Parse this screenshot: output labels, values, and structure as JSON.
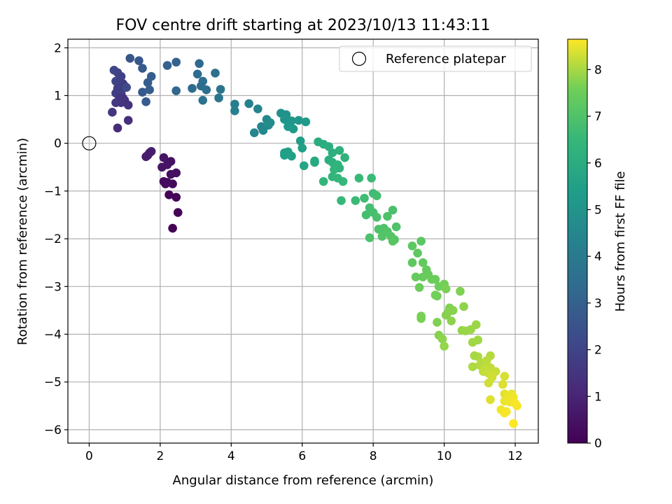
{
  "chart_data": {
    "type": "scatter",
    "title": "FOV centre drift starting at 2023/10/13 11:43:11",
    "xlabel": "Angular distance from reference (arcmin)",
    "ylabel": "Rotation from reference (arcmin)",
    "xlim": [
      -0.6,
      12.65
    ],
    "ylim": [
      -6.28,
      2.18
    ],
    "xticks": [
      0,
      2,
      4,
      6,
      8,
      10,
      12
    ],
    "xtick_labels": [
      "0",
      "2",
      "4",
      "6",
      "8",
      "10",
      "12"
    ],
    "yticks": [
      -6,
      -5,
      -4,
      -3,
      -2,
      -1,
      0,
      1,
      2
    ],
    "ytick_labels": [
      "−6",
      "−5",
      "−4",
      "−3",
      "−2",
      "−1",
      "0",
      "1",
      "2"
    ],
    "grid": true,
    "legend": {
      "placement": "upper right",
      "entries": [
        "Reference platepar"
      ]
    },
    "reference_point": {
      "x": 0,
      "y": 0,
      "label": "Reference platepar"
    },
    "colorbar": {
      "label": "Hours from first FF file",
      "range": [
        0,
        8.65
      ],
      "ticks": [
        0,
        1,
        2,
        3,
        4,
        5,
        6,
        7,
        8
      ],
      "tick_labels": [
        "0",
        "1",
        "2",
        "3",
        "4",
        "5",
        "6",
        "7",
        "8"
      ],
      "colormap": "viridis"
    },
    "points": [
      {
        "x": 1.6,
        "y": -0.28,
        "h": 0.7
      },
      {
        "x": 1.7,
        "y": -0.2,
        "h": 0.75
      },
      {
        "x": 1.75,
        "y": -0.17,
        "h": 0.8
      },
      {
        "x": 1.65,
        "y": -0.25,
        "h": 0.72
      },
      {
        "x": 2.1,
        "y": -0.3,
        "h": 0.5
      },
      {
        "x": 2.3,
        "y": -0.38,
        "h": 0.45
      },
      {
        "x": 2.05,
        "y": -0.5,
        "h": 0.55
      },
      {
        "x": 2.2,
        "y": -0.45,
        "h": 0.5
      },
      {
        "x": 2.45,
        "y": -0.62,
        "h": 0.4
      },
      {
        "x": 2.3,
        "y": -0.65,
        "h": 0.35
      },
      {
        "x": 2.1,
        "y": -0.8,
        "h": 0.3
      },
      {
        "x": 2.35,
        "y": -0.85,
        "h": 0.25
      },
      {
        "x": 2.2,
        "y": -0.82,
        "h": 0.28
      },
      {
        "x": 2.15,
        "y": -0.85,
        "h": 0.27
      },
      {
        "x": 2.25,
        "y": -1.08,
        "h": 0.15
      },
      {
        "x": 2.45,
        "y": -1.13,
        "h": 0.12
      },
      {
        "x": 2.5,
        "y": -1.45,
        "h": 0.08
      },
      {
        "x": 2.35,
        "y": -1.78,
        "h": 0.02
      },
      {
        "x": 0.7,
        "y": 1.53,
        "h": 2.1
      },
      {
        "x": 0.8,
        "y": 1.48,
        "h": 2.0
      },
      {
        "x": 0.9,
        "y": 1.4,
        "h": 1.9
      },
      {
        "x": 0.75,
        "y": 1.3,
        "h": 1.95
      },
      {
        "x": 0.95,
        "y": 1.25,
        "h": 1.85
      },
      {
        "x": 0.85,
        "y": 1.35,
        "h": 1.9
      },
      {
        "x": 0.8,
        "y": 1.15,
        "h": 1.8
      },
      {
        "x": 0.9,
        "y": 1.05,
        "h": 1.75
      },
      {
        "x": 0.75,
        "y": 1.05,
        "h": 1.8
      },
      {
        "x": 1.0,
        "y": 1.2,
        "h": 1.7
      },
      {
        "x": 1.05,
        "y": 1.17,
        "h": 2.2
      },
      {
        "x": 0.85,
        "y": 0.95,
        "h": 1.6
      },
      {
        "x": 0.95,
        "y": 0.95,
        "h": 1.5
      },
      {
        "x": 0.75,
        "y": 0.85,
        "h": 1.6
      },
      {
        "x": 0.9,
        "y": 0.85,
        "h": 1.55
      },
      {
        "x": 1.0,
        "y": 0.9,
        "h": 1.5
      },
      {
        "x": 1.1,
        "y": 0.8,
        "h": 1.4
      },
      {
        "x": 0.65,
        "y": 0.65,
        "h": 1.5
      },
      {
        "x": 1.1,
        "y": 0.48,
        "h": 1.3
      },
      {
        "x": 0.8,
        "y": 0.32,
        "h": 1.2
      },
      {
        "x": 1.15,
        "y": 1.78,
        "h": 2.6
      },
      {
        "x": 1.4,
        "y": 1.73,
        "h": 2.7
      },
      {
        "x": 1.5,
        "y": 1.57,
        "h": 2.8
      },
      {
        "x": 1.75,
        "y": 1.4,
        "h": 2.9
      },
      {
        "x": 1.65,
        "y": 1.27,
        "h": 2.85
      },
      {
        "x": 1.5,
        "y": 1.07,
        "h": 2.75
      },
      {
        "x": 1.7,
        "y": 1.12,
        "h": 2.9
      },
      {
        "x": 1.6,
        "y": 0.87,
        "h": 2.8
      },
      {
        "x": 2.2,
        "y": 1.63,
        "h": 3.0
      },
      {
        "x": 2.45,
        "y": 1.7,
        "h": 3.1
      },
      {
        "x": 2.45,
        "y": 1.1,
        "h": 3.2
      },
      {
        "x": 3.1,
        "y": 1.67,
        "h": 3.3
      },
      {
        "x": 3.05,
        "y": 1.45,
        "h": 3.4
      },
      {
        "x": 3.2,
        "y": 1.3,
        "h": 3.5
      },
      {
        "x": 3.15,
        "y": 1.2,
        "h": 3.45
      },
      {
        "x": 2.9,
        "y": 1.15,
        "h": 3.35
      },
      {
        "x": 3.3,
        "y": 1.12,
        "h": 3.5
      },
      {
        "x": 3.2,
        "y": 0.9,
        "h": 3.6
      },
      {
        "x": 3.55,
        "y": 1.47,
        "h": 3.6
      },
      {
        "x": 3.7,
        "y": 1.13,
        "h": 3.75
      },
      {
        "x": 3.65,
        "y": 0.95,
        "h": 3.8
      },
      {
        "x": 4.1,
        "y": 0.82,
        "h": 4.1
      },
      {
        "x": 4.1,
        "y": 0.68,
        "h": 4.2
      },
      {
        "x": 4.5,
        "y": 0.83,
        "h": 4.3
      },
      {
        "x": 4.75,
        "y": 0.72,
        "h": 4.4
      },
      {
        "x": 5.0,
        "y": 0.5,
        "h": 4.6
      },
      {
        "x": 4.85,
        "y": 0.35,
        "h": 4.5
      },
      {
        "x": 4.9,
        "y": 0.27,
        "h": 4.55
      },
      {
        "x": 5.05,
        "y": 0.38,
        "h": 4.65
      },
      {
        "x": 4.65,
        "y": 0.22,
        "h": 4.5
      },
      {
        "x": 5.1,
        "y": 0.43,
        "h": 4.7
      },
      {
        "x": 5.4,
        "y": 0.63,
        "h": 4.9
      },
      {
        "x": 5.55,
        "y": 0.6,
        "h": 5.0
      },
      {
        "x": 5.5,
        "y": 0.5,
        "h": 5.05
      },
      {
        "x": 5.7,
        "y": 0.47,
        "h": 5.1
      },
      {
        "x": 5.9,
        "y": 0.48,
        "h": 5.15
      },
      {
        "x": 5.6,
        "y": 0.35,
        "h": 5.2
      },
      {
        "x": 5.75,
        "y": 0.3,
        "h": 5.25
      },
      {
        "x": 6.1,
        "y": 0.45,
        "h": 5.3
      },
      {
        "x": 5.95,
        "y": 0.05,
        "h": 5.4
      },
      {
        "x": 6.0,
        "y": -0.1,
        "h": 5.5
      },
      {
        "x": 5.5,
        "y": -0.2,
        "h": 5.45
      },
      {
        "x": 5.6,
        "y": -0.18,
        "h": 5.5
      },
      {
        "x": 5.7,
        "y": -0.27,
        "h": 5.55
      },
      {
        "x": 5.5,
        "y": -0.25,
        "h": 5.5
      },
      {
        "x": 6.05,
        "y": -0.47,
        "h": 5.7
      },
      {
        "x": 6.35,
        "y": -0.37,
        "h": 5.85
      },
      {
        "x": 6.35,
        "y": -0.4,
        "h": 5.9
      },
      {
        "x": 6.45,
        "y": 0.03,
        "h": 6.0
      },
      {
        "x": 6.6,
        "y": -0.02,
        "h": 6.05
      },
      {
        "x": 6.75,
        "y": -0.07,
        "h": 6.1
      },
      {
        "x": 6.85,
        "y": -0.2,
        "h": 6.15
      },
      {
        "x": 6.75,
        "y": -0.35,
        "h": 6.1
      },
      {
        "x": 6.85,
        "y": -0.4,
        "h": 6.2
      },
      {
        "x": 7.05,
        "y": -0.15,
        "h": 6.2
      },
      {
        "x": 7.2,
        "y": -0.3,
        "h": 6.25
      },
      {
        "x": 7.0,
        "y": -0.45,
        "h": 6.3
      },
      {
        "x": 7.05,
        "y": -0.52,
        "h": 6.3
      },
      {
        "x": 6.9,
        "y": -0.55,
        "h": 6.35
      },
      {
        "x": 6.85,
        "y": -0.7,
        "h": 6.4
      },
      {
        "x": 7.0,
        "y": -0.73,
        "h": 6.45
      },
      {
        "x": 6.6,
        "y": -0.8,
        "h": 6.4
      },
      {
        "x": 7.15,
        "y": -0.8,
        "h": 6.5
      },
      {
        "x": 7.6,
        "y": -0.73,
        "h": 6.55
      },
      {
        "x": 7.95,
        "y": -0.73,
        "h": 6.6
      },
      {
        "x": 8.0,
        "y": -1.05,
        "h": 6.7
      },
      {
        "x": 8.1,
        "y": -1.1,
        "h": 6.75
      },
      {
        "x": 7.75,
        "y": -1.15,
        "h": 6.7
      },
      {
        "x": 7.1,
        "y": -1.2,
        "h": 6.5
      },
      {
        "x": 7.5,
        "y": -1.2,
        "h": 6.6
      },
      {
        "x": 7.9,
        "y": -1.35,
        "h": 6.8
      },
      {
        "x": 8.0,
        "y": -1.45,
        "h": 6.85
      },
      {
        "x": 7.8,
        "y": -1.5,
        "h": 6.8
      },
      {
        "x": 8.1,
        "y": -1.55,
        "h": 6.9
      },
      {
        "x": 8.4,
        "y": -1.53,
        "h": 6.95
      },
      {
        "x": 8.55,
        "y": -1.4,
        "h": 6.9
      },
      {
        "x": 8.15,
        "y": -1.8,
        "h": 7.0
      },
      {
        "x": 8.3,
        "y": -1.78,
        "h": 7.0
      },
      {
        "x": 8.4,
        "y": -1.85,
        "h": 7.05
      },
      {
        "x": 8.25,
        "y": -1.95,
        "h": 7.05
      },
      {
        "x": 8.5,
        "y": -1.95,
        "h": 7.1
      },
      {
        "x": 8.6,
        "y": -2.02,
        "h": 7.1
      },
      {
        "x": 8.55,
        "y": -2.05,
        "h": 7.15
      },
      {
        "x": 8.65,
        "y": -1.75,
        "h": 7.0
      },
      {
        "x": 7.9,
        "y": -1.98,
        "h": 6.95
      },
      {
        "x": 9.35,
        "y": -2.05,
        "h": 7.2
      },
      {
        "x": 9.1,
        "y": -2.15,
        "h": 7.25
      },
      {
        "x": 9.25,
        "y": -2.3,
        "h": 7.3
      },
      {
        "x": 9.1,
        "y": -2.5,
        "h": 7.3
      },
      {
        "x": 9.4,
        "y": -2.5,
        "h": 7.35
      },
      {
        "x": 9.5,
        "y": -2.65,
        "h": 7.4
      },
      {
        "x": 9.55,
        "y": -2.75,
        "h": 7.45
      },
      {
        "x": 9.75,
        "y": -2.85,
        "h": 7.5
      },
      {
        "x": 9.4,
        "y": -2.8,
        "h": 7.45
      },
      {
        "x": 9.2,
        "y": -2.8,
        "h": 7.4
      },
      {
        "x": 9.65,
        "y": -2.85,
        "h": 7.5
      },
      {
        "x": 9.3,
        "y": -3.02,
        "h": 7.5
      },
      {
        "x": 9.85,
        "y": -3.0,
        "h": 7.55
      },
      {
        "x": 10.0,
        "y": -2.95,
        "h": 7.6
      },
      {
        "x": 10.05,
        "y": -3.05,
        "h": 7.65
      },
      {
        "x": 9.8,
        "y": -3.2,
        "h": 7.6
      },
      {
        "x": 9.75,
        "y": -3.18,
        "h": 7.6
      },
      {
        "x": 10.45,
        "y": -3.1,
        "h": 7.7
      },
      {
        "x": 10.15,
        "y": -3.45,
        "h": 7.7
      },
      {
        "x": 10.1,
        "y": -3.55,
        "h": 7.75
      },
      {
        "x": 10.25,
        "y": -3.5,
        "h": 7.75
      },
      {
        "x": 10.55,
        "y": -3.42,
        "h": 7.8
      },
      {
        "x": 10.05,
        "y": -3.6,
        "h": 7.75
      },
      {
        "x": 10.2,
        "y": -3.72,
        "h": 7.8
      },
      {
        "x": 9.35,
        "y": -3.62,
        "h": 7.65
      },
      {
        "x": 9.35,
        "y": -3.67,
        "h": 7.65
      },
      {
        "x": 9.8,
        "y": -3.75,
        "h": 7.7
      },
      {
        "x": 10.9,
        "y": -3.8,
        "h": 7.9
      },
      {
        "x": 10.75,
        "y": -3.9,
        "h": 7.9
      },
      {
        "x": 10.5,
        "y": -3.92,
        "h": 7.85
      },
      {
        "x": 10.6,
        "y": -3.93,
        "h": 7.9
      },
      {
        "x": 9.85,
        "y": -4.02,
        "h": 7.75
      },
      {
        "x": 9.95,
        "y": -4.1,
        "h": 7.8
      },
      {
        "x": 10.95,
        "y": -4.12,
        "h": 7.95
      },
      {
        "x": 10.8,
        "y": -4.17,
        "h": 7.95
      },
      {
        "x": 10.0,
        "y": -4.25,
        "h": 7.85
      },
      {
        "x": 11.3,
        "y": -4.45,
        "h": 8.1
      },
      {
        "x": 10.95,
        "y": -4.47,
        "h": 8.05
      },
      {
        "x": 10.85,
        "y": -4.45,
        "h": 8.0
      },
      {
        "x": 11.1,
        "y": -4.6,
        "h": 8.1
      },
      {
        "x": 11.2,
        "y": -4.55,
        "h": 8.15
      },
      {
        "x": 11.0,
        "y": -4.65,
        "h": 8.1
      },
      {
        "x": 10.8,
        "y": -4.68,
        "h": 8.05
      },
      {
        "x": 11.15,
        "y": -4.72,
        "h": 8.2
      },
      {
        "x": 11.3,
        "y": -4.7,
        "h": 8.2
      },
      {
        "x": 11.1,
        "y": -4.78,
        "h": 8.2
      },
      {
        "x": 11.25,
        "y": -4.82,
        "h": 8.25
      },
      {
        "x": 11.45,
        "y": -4.78,
        "h": 8.25
      },
      {
        "x": 11.35,
        "y": -4.9,
        "h": 8.3
      },
      {
        "x": 11.7,
        "y": -4.88,
        "h": 8.35
      },
      {
        "x": 11.25,
        "y": -5.02,
        "h": 8.3
      },
      {
        "x": 11.65,
        "y": -5.05,
        "h": 8.4
      },
      {
        "x": 11.7,
        "y": -5.25,
        "h": 8.45
      },
      {
        "x": 11.8,
        "y": -5.3,
        "h": 8.5
      },
      {
        "x": 11.9,
        "y": -5.25,
        "h": 8.5
      },
      {
        "x": 11.95,
        "y": -5.32,
        "h": 8.55
      },
      {
        "x": 11.7,
        "y": -5.4,
        "h": 8.5
      },
      {
        "x": 11.85,
        "y": -5.42,
        "h": 8.55
      },
      {
        "x": 12.0,
        "y": -5.45,
        "h": 8.6
      },
      {
        "x": 12.05,
        "y": -5.5,
        "h": 8.6
      },
      {
        "x": 11.3,
        "y": -5.37,
        "h": 8.4
      },
      {
        "x": 11.6,
        "y": -5.58,
        "h": 8.55
      },
      {
        "x": 11.7,
        "y": -5.65,
        "h": 8.6
      },
      {
        "x": 11.75,
        "y": -5.62,
        "h": 8.6
      },
      {
        "x": 11.95,
        "y": -5.87,
        "h": 8.65
      }
    ]
  }
}
